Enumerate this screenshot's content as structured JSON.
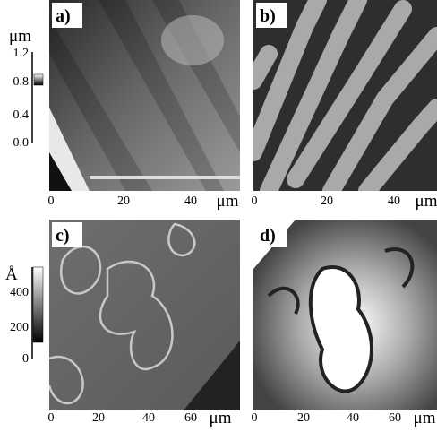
{
  "panels": [
    {
      "label": "a)",
      "xticks": [
        "0",
        "20",
        "40"
      ],
      "xunit": "μm"
    },
    {
      "label": "b)",
      "xticks": [
        "0",
        "20",
        "40"
      ],
      "xunit": "μm"
    },
    {
      "label": "c)",
      "xticks": [
        "0",
        "20",
        "40",
        "60"
      ],
      "xunit": "μm"
    },
    {
      "label": "d)",
      "xticks": [
        "0",
        "20",
        "40",
        "60"
      ],
      "xunit": "μm"
    }
  ],
  "scale_bars": [
    {
      "unit": "μm",
      "ticks": [
        "1.2",
        "0.8",
        "0.4",
        "0.0"
      ]
    },
    {
      "unit": "Å",
      "ticks": [
        "400",
        "200",
        "0"
      ]
    }
  ]
}
